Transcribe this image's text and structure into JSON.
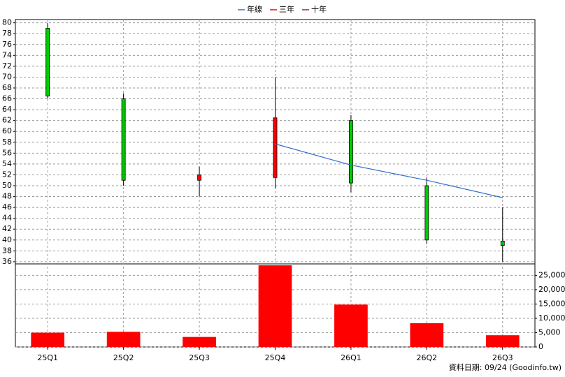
{
  "chart_data": {
    "type": "candlestick",
    "categories": [
      "25Q1",
      "25Q2",
      "25Q3",
      "25Q4",
      "26Q1",
      "26Q2",
      "26Q3"
    ],
    "open": [
      79,
      66,
      51,
      51.5,
      62,
      50,
      39.8
    ],
    "high": [
      80,
      67,
      53.5,
      70,
      63,
      51.5,
      46
    ],
    "low": [
      66,
      50,
      48,
      49.5,
      48.8,
      39.3,
      36
    ],
    "close": [
      66.5,
      51,
      52,
      62.5,
      50.5,
      40,
      39
    ],
    "up_color": "#ff0000",
    "down_color": "#00cc00",
    "series": [
      {
        "name": "年線",
        "color": "#3070d0",
        "values": [
          null,
          null,
          null,
          57.7,
          53.8,
          51,
          47.8
        ]
      },
      {
        "name": "三年",
        "color": "#ff0000",
        "values": [
          null,
          null,
          null,
          null,
          null,
          null,
          null
        ]
      },
      {
        "name": "十年",
        "color": "#a0204a",
        "values": [
          null,
          null,
          null,
          null,
          null,
          null,
          null
        ]
      }
    ],
    "ylim": [
      35.6,
      80.6
    ],
    "yticks": [
      36,
      38,
      40,
      42,
      44,
      46,
      48,
      50,
      52,
      54,
      56,
      58,
      60,
      62,
      64,
      66,
      68,
      70,
      72,
      74,
      76,
      78,
      80
    ],
    "grid": true,
    "volume": {
      "type": "bar",
      "color": "#ff0000",
      "values": [
        5000,
        5300,
        3500,
        28500,
        14800,
        8300,
        4100
      ],
      "ylim": [
        0,
        29000
      ],
      "yticks": [
        0,
        {
          "value": 5000,
          "label": "5,000"
        },
        {
          "value": 10000,
          "label": "10,000"
        },
        {
          "value": 15000,
          "label": "15,000"
        },
        {
          "value": 20000,
          "label": "20,000"
        },
        {
          "value": 25000,
          "label": "25,000"
        }
      ]
    },
    "footnote": "資料日期: 09/24  (Goodinfo.tw)"
  }
}
